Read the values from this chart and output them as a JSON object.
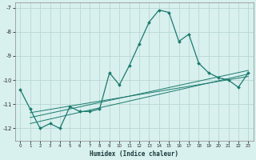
{
  "x": [
    0,
    1,
    2,
    3,
    4,
    5,
    6,
    7,
    8,
    9,
    10,
    11,
    12,
    13,
    14,
    15,
    16,
    17,
    18,
    19,
    20,
    21,
    22,
    23
  ],
  "y_main": [
    -10.4,
    -11.2,
    -12.0,
    -11.8,
    -12.0,
    -11.1,
    -11.3,
    -11.3,
    -11.2,
    -9.7,
    -10.2,
    -9.4,
    -8.5,
    -7.6,
    -7.1,
    -7.2,
    -8.4,
    -8.1,
    -9.3,
    -9.7,
    -9.9,
    -10.0,
    -10.3,
    -9.7
  ],
  "line_color": "#1a7a6e",
  "bg_color": "#d8f0ee",
  "grid_color": "#b8d8d4",
  "xlabel": "Humidex (Indice chaleur)",
  "xlim": [
    -0.5,
    23.5
  ],
  "ylim": [
    -12.5,
    -6.8
  ],
  "yticks": [
    -12,
    -11,
    -10,
    -9,
    -8,
    -7
  ],
  "xticks": [
    0,
    1,
    2,
    3,
    4,
    5,
    6,
    7,
    8,
    9,
    10,
    11,
    12,
    13,
    14,
    15,
    16,
    17,
    18,
    19,
    20,
    21,
    22,
    23
  ],
  "trend_lines": [
    {
      "x0": 1,
      "x1": 23,
      "y0": -11.8,
      "y1": -9.75
    },
    {
      "x0": 1,
      "x1": 23,
      "y0": -11.55,
      "y1": -9.6
    },
    {
      "x0": 1,
      "x1": 23,
      "y0": -11.35,
      "y1": -9.85
    }
  ]
}
